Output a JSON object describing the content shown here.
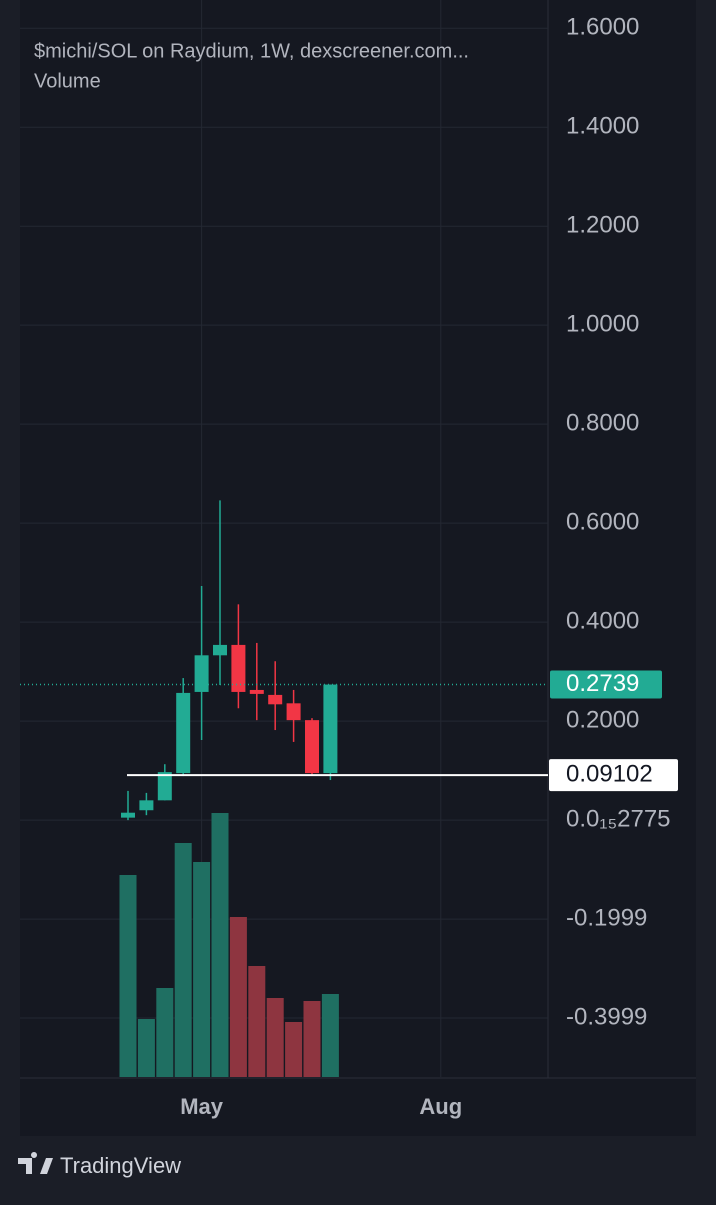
{
  "chart_data": {
    "type": "candlestick",
    "title": "$michi/SOL on Raydium, 1W, dexscreener.com...",
    "subtitle": "Volume",
    "open": [
      0.005,
      0.02,
      0.04,
      0.095,
      0.259,
      0.333,
      0.354,
      0.263,
      0.253,
      0.236,
      0.202,
      0.095
    ],
    "high": [
      0.059,
      0.055,
      0.113,
      0.287,
      0.473,
      0.646,
      0.436,
      0.358,
      0.321,
      0.263,
      0.206,
      0.2739
    ],
    "low": [
      0.0,
      0.01,
      0.04,
      0.089,
      0.162,
      0.273,
      0.226,
      0.202,
      0.182,
      0.158,
      0.091,
      0.081
    ],
    "close": [
      0.015,
      0.04,
      0.097,
      0.257,
      0.333,
      0.354,
      0.259,
      0.255,
      0.234,
      0.202,
      0.095,
      0.2739
    ],
    "volume": [
      202,
      58,
      89,
      234,
      215,
      264,
      160,
      111,
      79,
      55,
      76,
      83
    ],
    "up_color": "#22ab94",
    "down_color": "#f23645",
    "volume_up_color": "#1f6f62",
    "volume_down_color": "#8e3540",
    "ylim": [
      -0.519,
      1.657
    ],
    "yticks": [
      {
        "value": 1.6,
        "label": "1.6000"
      },
      {
        "value": 1.4,
        "label": "1.4000"
      },
      {
        "value": 1.2,
        "label": "1.2000"
      },
      {
        "value": 1.0,
        "label": "1.0000"
      },
      {
        "value": 0.8,
        "label": "0.8000"
      },
      {
        "value": 0.6,
        "label": "0.6000"
      },
      {
        "value": 0.4,
        "label": "0.4000"
      },
      {
        "value": 0.2,
        "label": "0.2000"
      },
      {
        "value": 2.775e-16,
        "label": "0.0₁₅2775"
      },
      -0.1999,
      -0.3999
    ],
    "xticks": [
      {
        "value": 4,
        "label": "May"
      },
      {
        "value": 17,
        "label": "Aug"
      }
    ],
    "last_price": {
      "value": 0.2739,
      "label": "0.2739"
    },
    "horizontal_line": {
      "value": 0.09102,
      "label": "0.09102"
    },
    "grid": true,
    "brand": "TradingView"
  }
}
